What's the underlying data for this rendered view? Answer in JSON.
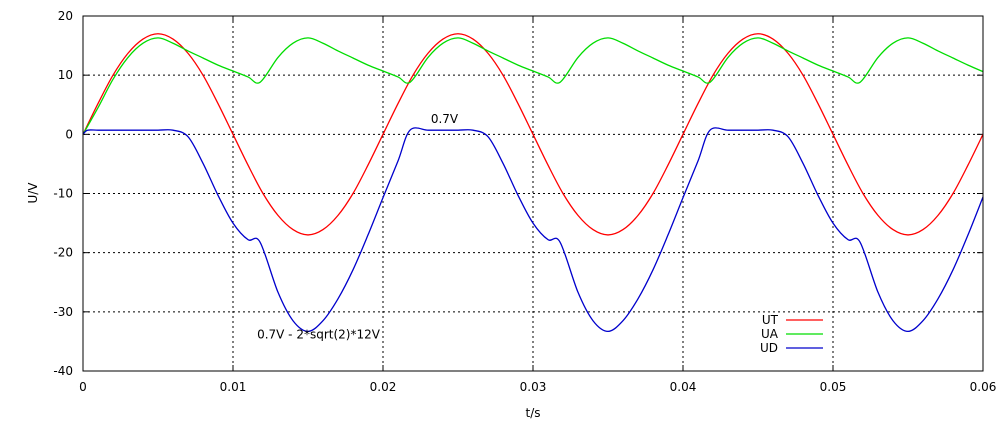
{
  "chart_data": {
    "type": "line",
    "title": "",
    "xlabel": "t/s",
    "ylabel": "U/V",
    "xlim": [
      0,
      0.06
    ],
    "ylim": [
      -40,
      20
    ],
    "xticks": [
      0,
      0.01,
      0.02,
      0.03,
      0.04,
      0.05,
      0.06
    ],
    "xtick_labels": [
      "0",
      "0.01",
      "0.02",
      "0.03",
      "0.04",
      "0.05",
      "0.06"
    ],
    "yticks": [
      -40,
      -30,
      -20,
      -10,
      0,
      10,
      20
    ],
    "ytick_labels": [
      "-40",
      "-30",
      "-20",
      "-10",
      "0",
      "10",
      "20"
    ],
    "grid": true,
    "legend_position": "bottom-right",
    "series": [
      {
        "name": "UT",
        "color": "#ff0000",
        "x": [
          0,
          0.001,
          0.002,
          0.003,
          0.004,
          0.005,
          0.006,
          0.007,
          0.008,
          0.009,
          0.01,
          0.011,
          0.012,
          0.013,
          0.014,
          0.015,
          0.016,
          0.017,
          0.018,
          0.019,
          0.02,
          0.021,
          0.022,
          0.023,
          0.024,
          0.025,
          0.026,
          0.027,
          0.028,
          0.029,
          0.03,
          0.031,
          0.032,
          0.033,
          0.034,
          0.035,
          0.036,
          0.037,
          0.038,
          0.039,
          0.04,
          0.041,
          0.042,
          0.043,
          0.044,
          0.045,
          0.046,
          0.047,
          0.048,
          0.049,
          0.05,
          0.051,
          0.052,
          0.053,
          0.054,
          0.055,
          0.056,
          0.057,
          0.058,
          0.059,
          0.06
        ],
        "y": [
          0,
          5.2,
          10.0,
          13.7,
          16.1,
          17.0,
          16.1,
          13.7,
          10.0,
          5.2,
          0,
          -5.2,
          -10.0,
          -13.7,
          -16.1,
          -17.0,
          -16.1,
          -13.7,
          -10.0,
          -5.2,
          0,
          5.2,
          10.0,
          13.7,
          16.1,
          17.0,
          16.1,
          13.7,
          10.0,
          5.2,
          0,
          -5.2,
          -10.0,
          -13.7,
          -16.1,
          -17.0,
          -16.1,
          -13.7,
          -10.0,
          -5.2,
          0,
          5.2,
          10.0,
          13.7,
          16.1,
          17.0,
          16.1,
          13.7,
          10.0,
          5.2,
          0,
          -5.2,
          -10.0,
          -13.7,
          -16.1,
          -17.0,
          -16.1,
          -13.7,
          -10.0,
          -5.2,
          0
        ]
      },
      {
        "name": "UA",
        "color": "#00dd00",
        "x": [
          0,
          0.001,
          0.002,
          0.003,
          0.004,
          0.005,
          0.006,
          0.007,
          0.008,
          0.009,
          0.01,
          0.011,
          0.0118,
          0.013,
          0.014,
          0.015,
          0.016,
          0.017,
          0.018,
          0.019,
          0.02,
          0.021,
          0.0218,
          0.023,
          0.024,
          0.025,
          0.026,
          0.027,
          0.028,
          0.029,
          0.03,
          0.031,
          0.0318,
          0.033,
          0.034,
          0.035,
          0.036,
          0.037,
          0.038,
          0.039,
          0.04,
          0.041,
          0.0418,
          0.043,
          0.044,
          0.045,
          0.046,
          0.047,
          0.048,
          0.049,
          0.05,
          0.051,
          0.0518,
          0.053,
          0.054,
          0.055,
          0.056,
          0.057,
          0.058,
          0.059,
          0.06
        ],
        "y": [
          0,
          4.5,
          9.3,
          13.0,
          15.4,
          16.3,
          15.4,
          14.1,
          12.9,
          11.7,
          10.7,
          9.7,
          8.8,
          13.0,
          15.4,
          16.3,
          15.4,
          14.1,
          12.9,
          11.7,
          10.7,
          9.7,
          8.8,
          13.0,
          15.4,
          16.3,
          15.4,
          14.1,
          12.9,
          11.7,
          10.7,
          9.7,
          8.8,
          13.0,
          15.4,
          16.3,
          15.4,
          14.1,
          12.9,
          11.7,
          10.7,
          9.7,
          8.8,
          13.0,
          15.4,
          16.3,
          15.4,
          14.1,
          12.9,
          11.7,
          10.7,
          9.7,
          8.8,
          13.0,
          15.4,
          16.3,
          15.4,
          14.1,
          12.9,
          11.7,
          10.6
        ]
      },
      {
        "name": "UD",
        "color": "#0000cc",
        "x": [
          0,
          0.0003,
          0.001,
          0.002,
          0.003,
          0.004,
          0.005,
          0.006,
          0.007,
          0.008,
          0.009,
          0.01,
          0.011,
          0.0118,
          0.013,
          0.014,
          0.015,
          0.016,
          0.017,
          0.018,
          0.019,
          0.02,
          0.021,
          0.0218,
          0.023,
          0.024,
          0.025,
          0.026,
          0.027,
          0.028,
          0.029,
          0.03,
          0.031,
          0.0318,
          0.033,
          0.034,
          0.035,
          0.036,
          0.037,
          0.038,
          0.039,
          0.04,
          0.041,
          0.0418,
          0.043,
          0.044,
          0.045,
          0.046,
          0.047,
          0.048,
          0.049,
          0.05,
          0.051,
          0.0518,
          0.053,
          0.054,
          0.055,
          0.056,
          0.057,
          0.058,
          0.059,
          0.06
        ],
        "y": [
          0,
          0.7,
          0.7,
          0.7,
          0.7,
          0.7,
          0.7,
          0.7,
          -0.4,
          -4.9,
          -10.3,
          -15.0,
          -17.8,
          -18.2,
          -26.7,
          -31.5,
          -33.3,
          -31.5,
          -27.8,
          -22.9,
          -17.0,
          -10.7,
          -4.5,
          0.7,
          0.7,
          0.7,
          0.7,
          0.7,
          -0.4,
          -4.9,
          -10.3,
          -15.0,
          -17.8,
          -18.2,
          -26.7,
          -31.5,
          -33.3,
          -31.5,
          -27.8,
          -22.9,
          -17.0,
          -10.7,
          -4.5,
          0.7,
          0.7,
          0.7,
          0.7,
          0.7,
          -0.4,
          -4.9,
          -10.3,
          -15.0,
          -17.8,
          -18.2,
          -26.7,
          -31.5,
          -33.3,
          -31.5,
          -27.8,
          -22.9,
          -17.0,
          -10.6
        ]
      }
    ],
    "annotations": [
      {
        "text": "0.7V",
        "x": 0.0241,
        "y": 1.9
      },
      {
        "text": "0.7V - 2*sqrt(2)*12V",
        "x": 0.0157,
        "y": -34.5
      }
    ]
  }
}
